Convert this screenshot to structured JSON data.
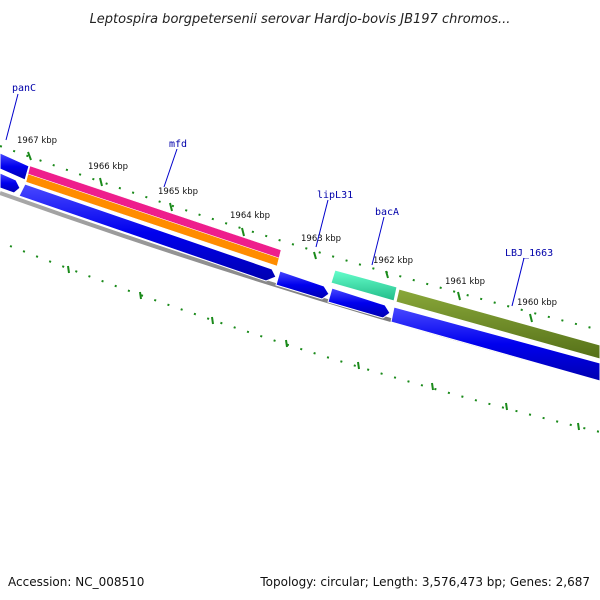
{
  "title": "Leptospira borgpetersenii serovar Hardjo-bovis JB197 chromos...",
  "footer": {
    "accession": "Accession: NC_008510",
    "summary": "Topology: circular; Length: 3,576,473 bp; Genes: 2,687"
  },
  "scale": {
    "ticks": [
      "1967 kbp",
      "1966 kbp",
      "1965 kbp",
      "1964 kbp",
      "1963 kbp",
      "1962 kbp",
      "1961 kbp",
      "1960 kbp"
    ]
  },
  "genes": [
    {
      "name": "panC"
    },
    {
      "name": "mfd"
    },
    {
      "name": "lipL31"
    },
    {
      "name": "bacA"
    },
    {
      "name": "LBJ_1663"
    }
  ],
  "colors": {
    "cds": "#0000ee",
    "backbone": "#808080",
    "ticks": "#1a8a1a",
    "mfd_pink": "#ee1e8c",
    "mfd_orange": "#ff8c00",
    "bacA": "#33ddaa",
    "LBJ_1663": "#6b8e23"
  }
}
